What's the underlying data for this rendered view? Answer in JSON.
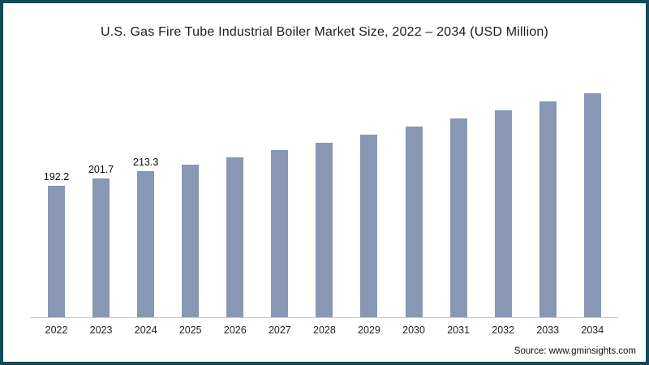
{
  "header": {
    "title": "U.S. Gas Fire Tube Industrial Boiler Market Size, 2022 – 2034 (USD Million)"
  },
  "footer": {
    "source": "Source: www.gminsights.com"
  },
  "chart_data": {
    "type": "bar",
    "title": "U.S. Gas Fire Tube Industrial Boiler Market Size, 2022 – 2034 (USD Million)",
    "categories": [
      "2022",
      "2023",
      "2024",
      "2025",
      "2026",
      "2027",
      "2028",
      "2029",
      "2030",
      "2031",
      "2032",
      "2033",
      "2034"
    ],
    "values": [
      192.2,
      201.7,
      213.3,
      222.5,
      233.5,
      244.0,
      254.5,
      266.0,
      277.5,
      289.5,
      302.0,
      315.0,
      327.0
    ],
    "data_labels": [
      "192.2",
      "201.7",
      "213.3",
      "",
      "",
      "",
      "",
      "",
      "",
      "",
      "",
      "",
      ""
    ],
    "xlabel": "",
    "ylabel": "",
    "ylim": [
      0,
      350
    ],
    "grid": false,
    "legend": false,
    "bar_color": "#8897b3",
    "frame_color": "#134a57",
    "source": "Source: www.gminsights.com"
  }
}
